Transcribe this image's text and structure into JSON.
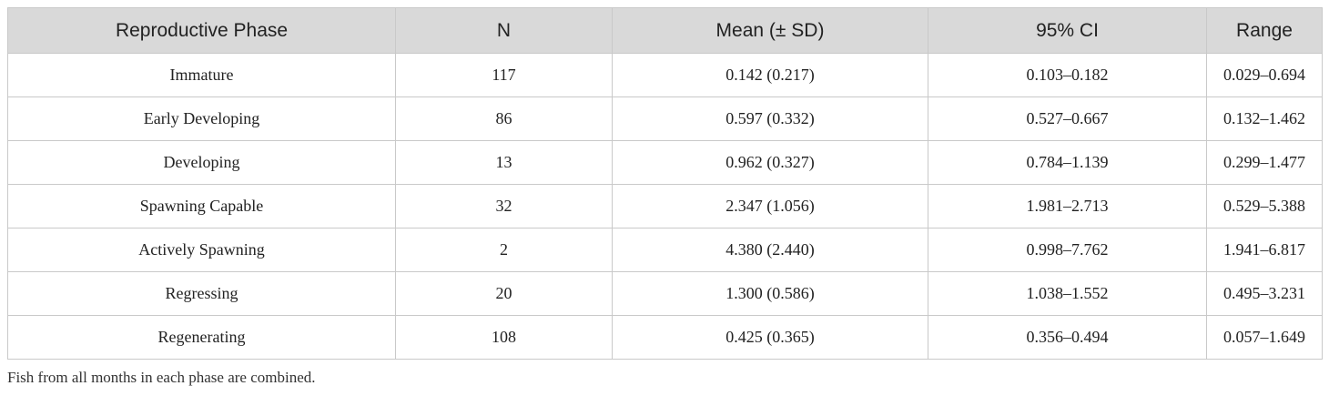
{
  "table": {
    "headers": [
      "Reproductive Phase",
      "N",
      "Mean (± SD)",
      "95% CI",
      "Range"
    ],
    "rows": [
      [
        "Immature",
        "117",
        "0.142 (0.217)",
        "0.103–0.182",
        "0.029–0.694"
      ],
      [
        "Early Developing",
        "86",
        "0.597 (0.332)",
        "0.527–0.667",
        "0.132–1.462"
      ],
      [
        "Developing",
        "13",
        "0.962 (0.327)",
        "0.784–1.139",
        "0.299–1.477"
      ],
      [
        "Spawning Capable",
        "32",
        "2.347 (1.056)",
        "1.981–2.713",
        "0.529–5.388"
      ],
      [
        "Actively Spawning",
        "2",
        "4.380 (2.440)",
        "0.998–7.762",
        "1.941–6.817"
      ],
      [
        "Regressing",
        "20",
        "1.300 (0.586)",
        "1.038–1.552",
        "0.495–3.231"
      ],
      [
        "Regenerating",
        "108",
        "0.425 (0.365)",
        "0.356–0.494",
        "0.057–1.649"
      ]
    ]
  },
  "footnote": "Fish from all months in each phase are combined."
}
